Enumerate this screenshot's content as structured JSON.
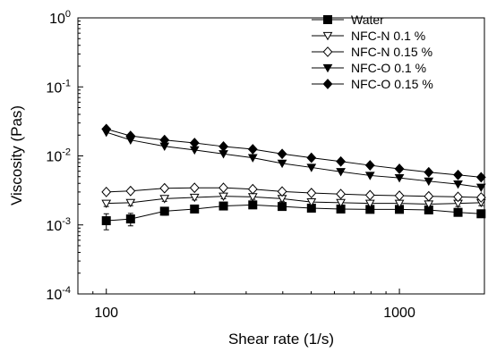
{
  "chart_data": {
    "type": "line",
    "x_scale": "log",
    "y_scale": "log",
    "xlabel": "Shear rate (1/s)",
    "ylabel": "Viscosity (Pas)",
    "xlim": [
      80,
      1950
    ],
    "ylim": [
      0.0001,
      1
    ],
    "x_ticks": [
      {
        "value": 100,
        "label": "100"
      },
      {
        "value": 1000,
        "label": "1000"
      }
    ],
    "y_ticks": [
      {
        "value": 1,
        "base": "10",
        "exp": "0"
      },
      {
        "value": 0.1,
        "base": "10",
        "exp": "-1"
      },
      {
        "value": 0.01,
        "base": "10",
        "exp": "-2"
      },
      {
        "value": 0.001,
        "base": "10",
        "exp": "-3"
      },
      {
        "value": 0.0001,
        "base": "10",
        "exp": "-4"
      }
    ],
    "legend_position": "top-right",
    "grid": false,
    "x": [
      100,
      121,
      158,
      200,
      251,
      316,
      398,
      501,
      631,
      794,
      1000,
      1259,
      1585,
      1900
    ],
    "series": [
      {
        "name": "Water",
        "marker": "square",
        "filled": true,
        "values": [
          0.00115,
          0.00122,
          0.00158,
          0.0017,
          0.00188,
          0.00195,
          0.00185,
          0.00175,
          0.0017,
          0.00168,
          0.00168,
          0.00165,
          0.00152,
          0.00145
        ],
        "error": [
          0.0003,
          0.00025,
          0.0002,
          0.00015,
          0.00012,
          0.0001,
          0.0001,
          0.0001,
          0.0001,
          0.0001,
          0.0001,
          0.0001,
          0.0001,
          0.0001
        ]
      },
      {
        "name": "NFC-N 0.1 %",
        "marker": "triangle-down",
        "filled": false,
        "values": [
          0.00205,
          0.0021,
          0.0024,
          0.0025,
          0.0026,
          0.00255,
          0.0024,
          0.00215,
          0.0021,
          0.00205,
          0.00205,
          0.002,
          0.00205,
          0.0021
        ],
        "error": [
          0.0002,
          0.0002,
          0.0002,
          0.0002,
          0.0002,
          0.0002,
          0.0002,
          0.0002,
          0.0002,
          0.0002,
          0.0002,
          0.0002,
          0.0002,
          0.0002
        ]
      },
      {
        "name": "NFC-N 0.15 %",
        "marker": "diamond",
        "filled": false,
        "values": [
          0.003,
          0.0031,
          0.0034,
          0.00345,
          0.00345,
          0.0033,
          0.00305,
          0.0029,
          0.0028,
          0.0027,
          0.00265,
          0.0026,
          0.00255,
          0.0025
        ],
        "error": [
          0.0002,
          0.0002,
          0.0002,
          0.0002,
          0.0002,
          0.0002,
          0.0002,
          0.0002,
          0.0002,
          0.0002,
          0.0002,
          0.0002,
          0.0002,
          0.0002
        ]
      },
      {
        "name": "NFC-O 0.1 %",
        "marker": "triangle-down",
        "filled": true,
        "values": [
          0.022,
          0.017,
          0.0138,
          0.0122,
          0.0107,
          0.0094,
          0.0078,
          0.0068,
          0.0059,
          0.0052,
          0.0048,
          0.0043,
          0.0039,
          0.0035
        ],
        "error": [
          0,
          0,
          0,
          0,
          0,
          0,
          0,
          0,
          0,
          0,
          0,
          0,
          0,
          0
        ]
      },
      {
        "name": "NFC-O 0.15 %",
        "marker": "diamond",
        "filled": true,
        "values": [
          0.0245,
          0.0195,
          0.017,
          0.0154,
          0.0137,
          0.0125,
          0.0107,
          0.0094,
          0.0083,
          0.0073,
          0.0065,
          0.0058,
          0.0053,
          0.0049
        ],
        "error": [
          0,
          0,
          0,
          0,
          0,
          0,
          0,
          0,
          0,
          0,
          0,
          0,
          0,
          0
        ]
      }
    ]
  }
}
